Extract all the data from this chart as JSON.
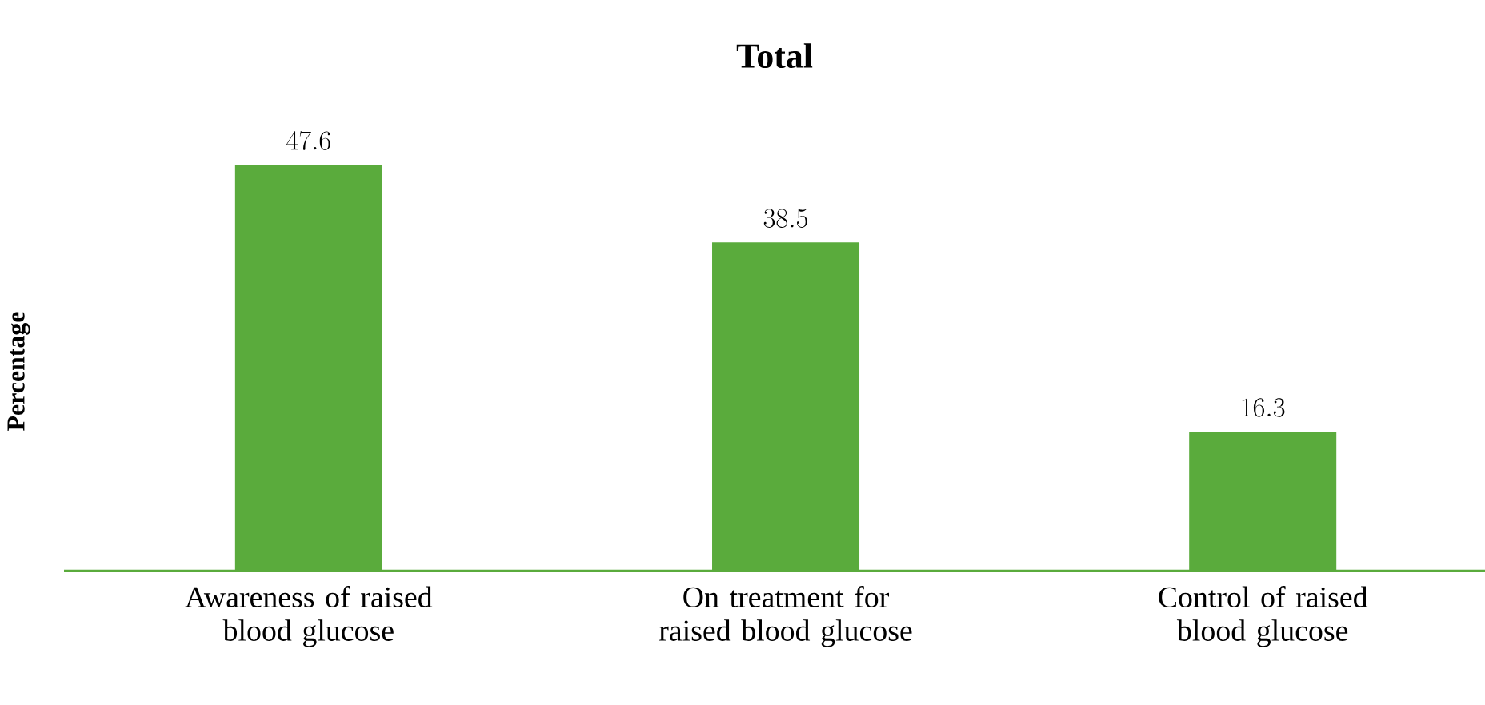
{
  "chart_data": {
    "type": "bar",
    "title": "Total",
    "ylabel": "Percentage",
    "categories": [
      "Awareness of raised blood glucose",
      "On treatment for raised blood glucose",
      "Control of raised blood glucose"
    ],
    "values": [
      47.6,
      38.5,
      16.3
    ],
    "color": "#5aab3c",
    "data_labels": true
  }
}
